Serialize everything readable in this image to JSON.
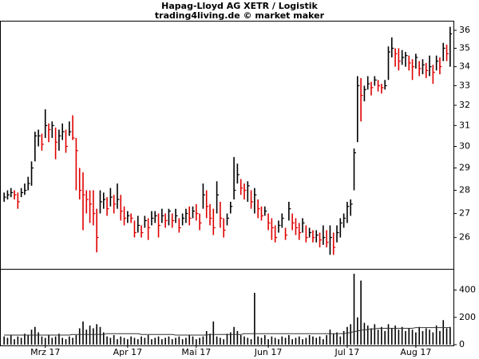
{
  "chart_data": {
    "type": "ohlc",
    "title": "Hapag-Lloyd AG XETR / Logistik",
    "subtitle": "trading4living.de © market maker",
    "categories": [
      null,
      null,
      null,
      null,
      null,
      null,
      null,
      null,
      null,
      null,
      null,
      null,
      "Mrz 17",
      null,
      null,
      null,
      null,
      null,
      null,
      null,
      null,
      null,
      null,
      null,
      null,
      null,
      null,
      null,
      null,
      null,
      null,
      null,
      null,
      null,
      null,
      null,
      "Apr 17",
      null,
      null,
      null,
      null,
      null,
      null,
      null,
      null,
      null,
      null,
      null,
      null,
      null,
      null,
      null,
      null,
      null,
      null,
      null,
      "Mai 17",
      null,
      null,
      null,
      null,
      null,
      null,
      null,
      null,
      null,
      null,
      null,
      null,
      null,
      null,
      null,
      null,
      null,
      null,
      null,
      null,
      "Jun 17",
      null,
      null,
      null,
      null,
      null,
      null,
      null,
      null,
      null,
      null,
      null,
      null,
      null,
      null,
      null,
      null,
      null,
      null,
      null,
      null,
      null,
      null,
      "Jul 17",
      null,
      null,
      null,
      null,
      null,
      null,
      null,
      null,
      null,
      null,
      null,
      null,
      null,
      null,
      null,
      null,
      null,
      null,
      null,
      "Aug 17",
      null,
      null,
      null,
      null,
      null,
      null,
      null,
      null,
      null,
      null
    ],
    "high": [
      27.9,
      28.0,
      28.1,
      28.0,
      27.9,
      28.1,
      28.3,
      28.6,
      29.3,
      30.7,
      30.8,
      30.6,
      31.8,
      31.1,
      31.2,
      30.9,
      30.8,
      31.1,
      30.8,
      31.2,
      31.5,
      30.4,
      29.0,
      28.8,
      28.0,
      28.0,
      28.0,
      27.2,
      28.0,
      27.9,
      27.7,
      28.1,
      27.8,
      28.3,
      27.8,
      27.3,
      27.1,
      27.0,
      26.7,
      26.9,
      26.5,
      26.9,
      26.8,
      27.1,
      27.1,
      27.0,
      27.2,
      27.0,
      27.2,
      27.0,
      27.2,
      26.8,
      27.0,
      27.2,
      27.3,
      27.3,
      27.4,
      27.0,
      28.3,
      28.0,
      27.4,
      27.2,
      28.4,
      27.5,
      26.8,
      27.0,
      27.5,
      29.5,
      29.2,
      28.5,
      28.3,
      28.4,
      28.0,
      28.1,
      27.6,
      27.3,
      27.3,
      27.0,
      26.8,
      26.5,
      26.7,
      27.0,
      26.4,
      27.5,
      27.0,
      26.8,
      26.6,
      26.8,
      26.5,
      26.4,
      26.3,
      26.3,
      26.2,
      26.5,
      26.3,
      26.5,
      26.2,
      26.5,
      26.8,
      27.0,
      27.5,
      27.6,
      29.9,
      33.5,
      33.4,
      33.0,
      33.5,
      33.2,
      33.5,
      33.3,
      33.1,
      33.3,
      35.1,
      35.6,
      35.0,
      35.0,
      34.9,
      34.8,
      34.6,
      34.4,
      34.7,
      34.3,
      34.4,
      34.2,
      34.6,
      34.1,
      34.6,
      34.5,
      35.3,
      35.2,
      36.2
    ],
    "low": [
      27.5,
      27.6,
      27.7,
      27.6,
      27.2,
      27.7,
      27.8,
      28.0,
      28.2,
      29.3,
      30.0,
      29.8,
      30.4,
      30.2,
      30.4,
      29.4,
      29.8,
      30.3,
      29.7,
      30.5,
      30.3,
      28.0,
      27.6,
      26.3,
      27.0,
      26.6,
      26.5,
      25.4,
      27.0,
      27.2,
      26.9,
      27.3,
      27.0,
      27.2,
      26.7,
      26.5,
      26.6,
      26.6,
      26.0,
      26.2,
      26.0,
      26.4,
      25.9,
      26.5,
      26.6,
      26.0,
      26.6,
      26.4,
      26.5,
      26.4,
      26.6,
      26.2,
      26.5,
      26.6,
      26.5,
      26.8,
      26.7,
      26.3,
      27.2,
      26.8,
      26.5,
      26.1,
      27.0,
      26.4,
      26.0,
      26.5,
      27.0,
      27.6,
      28.3,
      27.8,
      27.6,
      27.5,
      27.2,
      27.0,
      26.8,
      26.7,
      26.9,
      26.3,
      25.9,
      25.8,
      26.2,
      26.4,
      25.9,
      26.7,
      26.3,
      26.1,
      25.9,
      26.2,
      25.8,
      26.0,
      25.8,
      25.8,
      25.6,
      25.7,
      25.6,
      25.3,
      25.3,
      25.8,
      26.0,
      26.4,
      26.6,
      26.9,
      28.0,
      30.2,
      31.2,
      32.2,
      32.8,
      32.5,
      33.0,
      32.7,
      32.6,
      32.8,
      33.3,
      34.5,
      34.0,
      33.8,
      34.1,
      34.0,
      33.8,
      33.3,
      33.9,
      33.5,
      33.6,
      33.4,
      33.5,
      33.1,
      33.8,
      33.6,
      34.3,
      34.3,
      34.0
    ],
    "close": [
      27.7,
      27.8,
      27.9,
      27.8,
      27.5,
      27.9,
      28.0,
      28.3,
      29.0,
      30.5,
      30.5,
      30.1,
      31.0,
      30.8,
      31.0,
      30.2,
      30.5,
      30.7,
      30.0,
      30.7,
      30.4,
      29.8,
      28.0,
      27.8,
      27.6,
      27.4,
      27.0,
      26.0,
      27.5,
      27.6,
      27.2,
      27.7,
      27.4,
      27.6,
      27.1,
      26.8,
      26.9,
      26.8,
      26.2,
      26.5,
      26.2,
      26.7,
      26.4,
      26.8,
      26.9,
      26.5,
      26.9,
      26.7,
      27.1,
      26.7,
      26.9,
      26.4,
      26.8,
      27.0,
      26.8,
      27.1,
      27.0,
      26.6,
      27.8,
      27.3,
      26.8,
      26.4,
      27.8,
      26.8,
      26.3,
      26.8,
      27.3,
      28.0,
      28.7,
      28.1,
      28.0,
      28.2,
      27.5,
      27.8,
      27.2,
      26.9,
      27.1,
      26.6,
      26.4,
      26.0,
      26.5,
      26.8,
      26.1,
      27.2,
      26.6,
      26.4,
      26.2,
      26.6,
      26.0,
      26.2,
      26.0,
      26.1,
      25.9,
      26.0,
      25.8,
      26.0,
      25.6,
      26.2,
      26.6,
      26.8,
      27.3,
      27.4,
      29.7,
      33.0,
      32.5,
      32.8,
      33.1,
      32.9,
      33.3,
      33.0,
      32.9,
      33.0,
      34.8,
      35.0,
      34.7,
      34.3,
      34.5,
      34.6,
      34.2,
      34.0,
      34.5,
      33.9,
      34.1,
      33.8,
      34.0,
      33.7,
      34.3,
      34.0,
      35.0,
      34.7,
      35.8
    ],
    "up_color": "#000000",
    "down_color": "#e00000",
    "log_scale": true,
    "ylim": [
      24.75,
      36.5
    ],
    "yticks": [
      26,
      27,
      28,
      29,
      30,
      31,
      32,
      33,
      34,
      35,
      36
    ],
    "volume": {
      "values": [
        60,
        50,
        70,
        40,
        60,
        50,
        80,
        70,
        110,
        130,
        90,
        60,
        50,
        70,
        50,
        60,
        80,
        50,
        40,
        60,
        50,
        70,
        120,
        170,
        110,
        140,
        120,
        150,
        130,
        90,
        60,
        50,
        70,
        40,
        60,
        50,
        40,
        60,
        50,
        40,
        60,
        50,
        70,
        40,
        50,
        60,
        40,
        50,
        60,
        40,
        50,
        60,
        40,
        50,
        70,
        60,
        40,
        50,
        60,
        100,
        80,
        170,
        60,
        50,
        40,
        80,
        90,
        130,
        100,
        70,
        60,
        50,
        40,
        380,
        60,
        50,
        70,
        40,
        60,
        50,
        40,
        60,
        50,
        70,
        40,
        50,
        60,
        40,
        50,
        70,
        60,
        50,
        60,
        40,
        70,
        110,
        80,
        90,
        60,
        100,
        130,
        150,
        520,
        200,
        470,
        160,
        140,
        120,
        150,
        110,
        130,
        100,
        150,
        120,
        140,
        110,
        130,
        100,
        120,
        110,
        90,
        130,
        100,
        120,
        110,
        90,
        140,
        100,
        180,
        120,
        130
      ],
      "color": "#000000",
      "average": [
        70,
        70,
        70,
        70,
        70,
        70,
        70,
        70,
        70,
        70,
        70,
        70,
        70,
        70,
        70,
        70,
        70,
        70,
        70,
        70,
        75,
        75,
        75,
        75,
        75,
        75,
        75,
        75,
        75,
        75,
        80,
        80,
        80,
        80,
        80,
        80,
        80,
        80,
        80,
        80,
        75,
        75,
        75,
        75,
        75,
        75,
        75,
        75,
        75,
        75,
        70,
        70,
        70,
        70,
        70,
        70,
        70,
        70,
        70,
        70,
        75,
        75,
        75,
        75,
        75,
        75,
        75,
        75,
        75,
        75,
        80,
        80,
        80,
        80,
        80,
        80,
        80,
        80,
        80,
        80,
        80,
        80,
        80,
        80,
        80,
        80,
        80,
        80,
        80,
        80,
        80,
        80,
        80,
        80,
        80,
        80,
        80,
        80,
        80,
        80,
        85,
        90,
        95,
        100,
        105,
        110,
        110,
        115,
        115,
        120,
        120,
        120,
        120,
        120,
        120,
        120,
        120,
        120,
        120,
        120,
        125,
        125,
        125,
        125,
        125,
        125,
        125,
        125,
        125,
        125,
        125
      ],
      "average_color": "#333333",
      "ylim": [
        0,
        550
      ],
      "yticks": [
        0,
        200,
        400
      ]
    }
  }
}
